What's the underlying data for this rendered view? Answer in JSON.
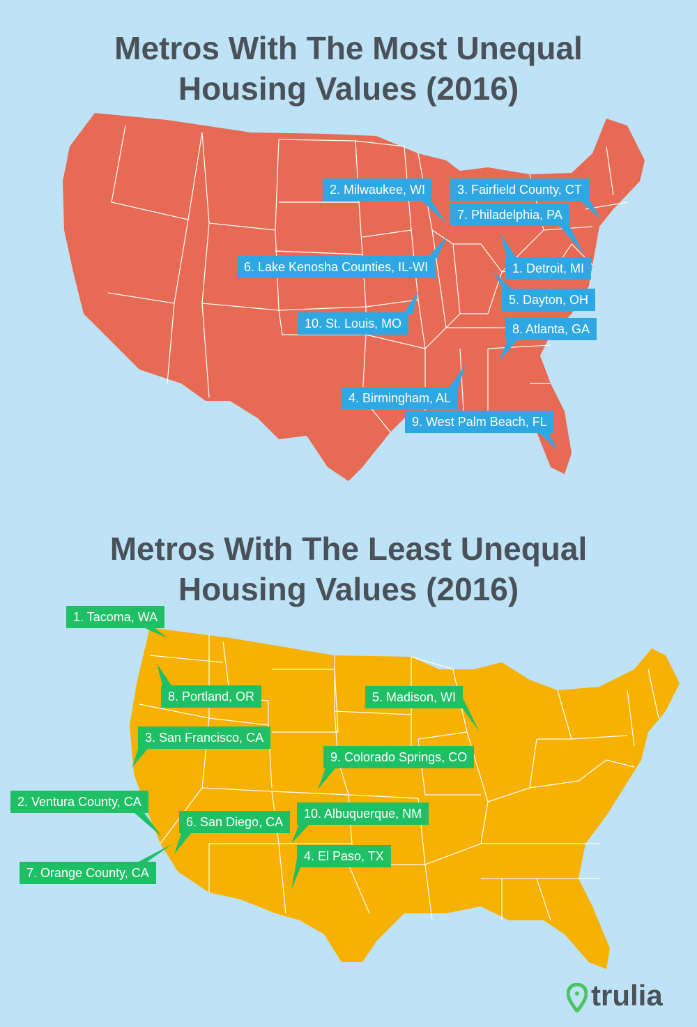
{
  "colors": {
    "background": "#bfe3f6",
    "most_unequal_map": "#e76b54",
    "least_unequal_map": "#f7b102",
    "label_blue": "#2fa7e2",
    "label_green": "#1fbf65",
    "state_border": "#ffffff",
    "title_text": "#4a5158",
    "brand_green": "#4fc264"
  },
  "top_map": {
    "title_line1": "Metros With The Most Unequal",
    "title_line2": "Housing Values (2016)",
    "labels": [
      "1. Detroit, MI",
      "2. Milwaukee, WI",
      "3. Fairfield County, CT",
      "4. Birmingham, AL",
      "5. Dayton, OH",
      "6. Lake Kenosha Counties, IL-WI",
      "7. Philadelphia, PA",
      "8. Atlanta, GA",
      "9. West Palm Beach, FL",
      "10. St. Louis, MO"
    ]
  },
  "bottom_map": {
    "title_line1": "Metros With The Least Unequal",
    "title_line2": "Housing Values (2016)",
    "labels": [
      "1. Tacoma, WA",
      "2. Ventura County, CA",
      "3. San Francisco, CA",
      "4. El Paso, TX",
      "5. Madison, WI",
      "6. San Diego, CA",
      "7. Orange County, CA",
      "8. Portland, OR",
      "9. Colorado Springs, CO",
      "10. Albuquerque, NM"
    ]
  },
  "logo": {
    "brand": "trulia",
    "icon": "map-pin-icon"
  }
}
